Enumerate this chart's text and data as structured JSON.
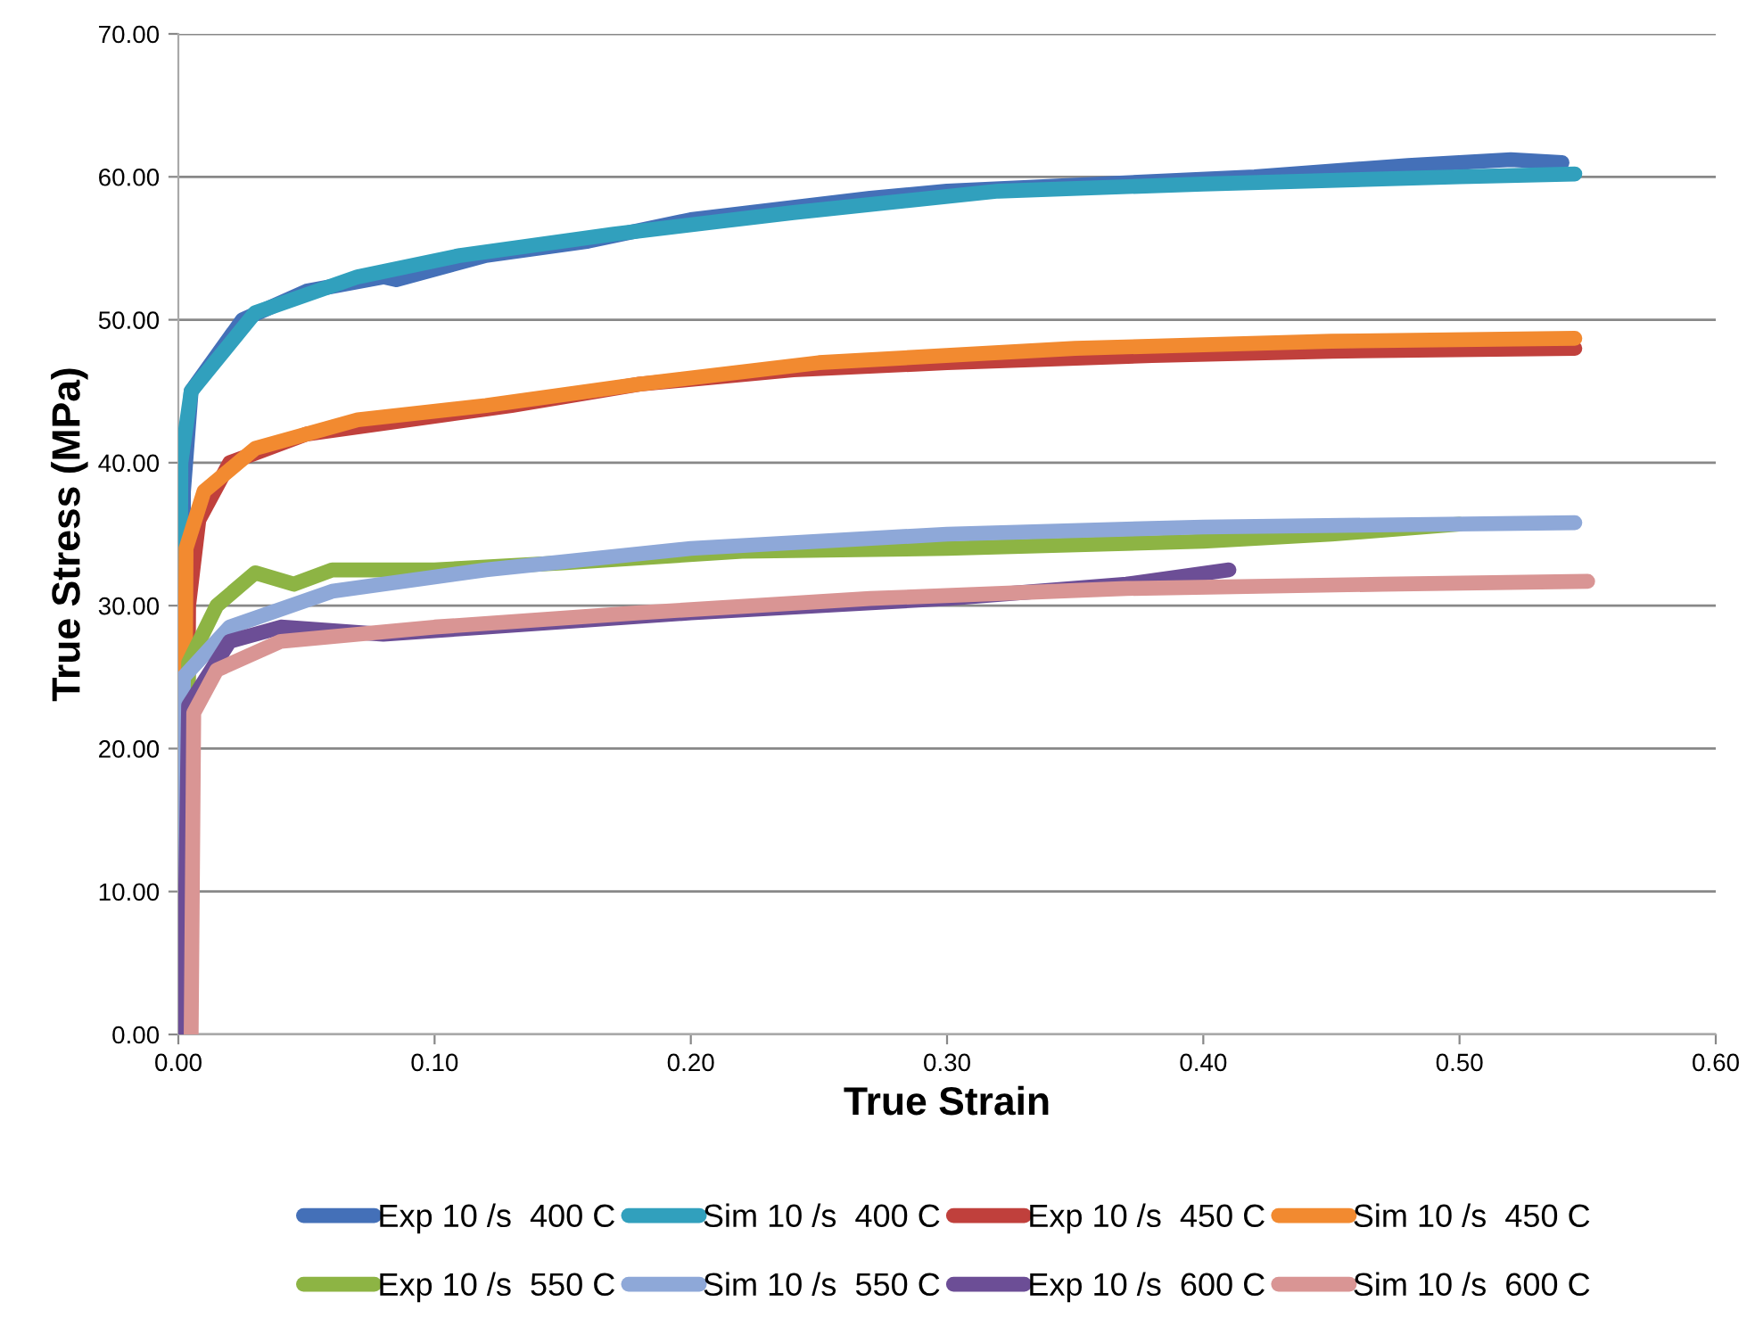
{
  "chart_data": {
    "type": "line",
    "xlabel": "True Strain",
    "ylabel": "True Stress (MPa)",
    "xlim": [
      0,
      0.6
    ],
    "ylim": [
      0,
      70
    ],
    "xticks": [
      {
        "value": 0,
        "label": "0.00"
      },
      {
        "value": 0.1,
        "label": "0.10"
      },
      {
        "value": 0.2,
        "label": "0.20"
      },
      {
        "value": 0.3,
        "label": "0.30"
      },
      {
        "value": 0.4,
        "label": "0.40"
      },
      {
        "value": 0.5,
        "label": "0.50"
      },
      {
        "value": 0.6,
        "label": "0.60"
      }
    ],
    "yticks": [
      {
        "value": 0,
        "label": "0.00"
      },
      {
        "value": 10,
        "label": "10.00"
      },
      {
        "value": 20,
        "label": "20.00"
      },
      {
        "value": 30,
        "label": "30.00"
      },
      {
        "value": 40,
        "label": "40.00"
      },
      {
        "value": 50,
        "label": "50.00"
      },
      {
        "value": 60,
        "label": "60.00"
      },
      {
        "value": 70,
        "label": "70.00"
      }
    ],
    "grid": "y",
    "legend": "bottom",
    "marker": "none",
    "line_style": "solid",
    "series": [
      {
        "name": "Exp 10 /s  400 C",
        "color": "#4470b8",
        "x": [
          0.001,
          0.002,
          0.005,
          0.025,
          0.05,
          0.08,
          0.085,
          0.12,
          0.16,
          0.2,
          0.27,
          0.3,
          0.36,
          0.42,
          0.48,
          0.52,
          0.54
        ],
        "values": [
          0,
          38,
          45,
          50,
          52,
          53,
          52.8,
          54.5,
          55.5,
          57,
          58.5,
          59,
          59.5,
          60,
          60.8,
          61.2,
          61
        ]
      },
      {
        "name": "Sim 10 /s  400 C",
        "color": "#31a0bd",
        "x": [
          0,
          0.001,
          0.005,
          0.03,
          0.07,
          0.11,
          0.17,
          0.24,
          0.32,
          0.4,
          0.5,
          0.545
        ],
        "values": [
          0,
          40,
          45,
          50.5,
          53,
          54.5,
          56,
          57.5,
          59,
          59.5,
          60,
          60.2
        ]
      },
      {
        "name": "Exp 10 /s  450 C",
        "color": "#c0403c",
        "x": [
          0.003,
          0.004,
          0.008,
          0.02,
          0.05,
          0.09,
          0.13,
          0.18,
          0.24,
          0.3,
          0.38,
          0.45,
          0.545
        ],
        "values": [
          0,
          30,
          36,
          40,
          42,
          43,
          44,
          45.5,
          46.5,
          47,
          47.5,
          47.8,
          48
        ]
      },
      {
        "name": "Sim 10 /s  450 C",
        "color": "#f28a30",
        "x": [
          0.002,
          0.003,
          0.01,
          0.03,
          0.07,
          0.12,
          0.18,
          0.25,
          0.35,
          0.45,
          0.545
        ],
        "values": [
          0,
          34,
          38,
          41,
          43,
          44,
          45.5,
          47,
          48,
          48.5,
          48.7
        ]
      },
      {
        "name": "Exp 10 /s  550 C",
        "color": "#8db444",
        "x": [
          0.002,
          0.004,
          0.015,
          0.03,
          0.045,
          0.06,
          0.1,
          0.15,
          0.22,
          0.3,
          0.4,
          0.45,
          0.5
        ],
        "values": [
          0,
          26,
          30,
          32.3,
          31.5,
          32.5,
          32.5,
          33,
          33.8,
          34,
          34.5,
          35,
          35.7
        ]
      },
      {
        "name": "Sim 10 /s  550 C",
        "color": "#8ea8d8",
        "x": [
          0,
          0.002,
          0.02,
          0.06,
          0.12,
          0.2,
          0.3,
          0.4,
          0.545
        ],
        "values": [
          0,
          25,
          28.5,
          31,
          32.5,
          34,
          35,
          35.5,
          35.8
        ]
      },
      {
        "name": "Exp 10 /s  600 C",
        "color": "#6c4e96",
        "x": [
          0.002,
          0.004,
          0.02,
          0.04,
          0.08,
          0.12,
          0.16,
          0.2,
          0.3,
          0.37,
          0.41
        ],
        "values": [
          0,
          23,
          27.5,
          28.5,
          28,
          28.5,
          29,
          29.5,
          30.5,
          31.5,
          32.5
        ]
      },
      {
        "name": "Sim 10 /s  600 C",
        "color": "#d99594",
        "x": [
          0.005,
          0.006,
          0.015,
          0.04,
          0.1,
          0.18,
          0.27,
          0.37,
          0.47,
          0.55
        ],
        "values": [
          0,
          22.5,
          25.5,
          27.5,
          28.5,
          29.5,
          30.5,
          31.2,
          31.5,
          31.7
        ]
      }
    ]
  }
}
